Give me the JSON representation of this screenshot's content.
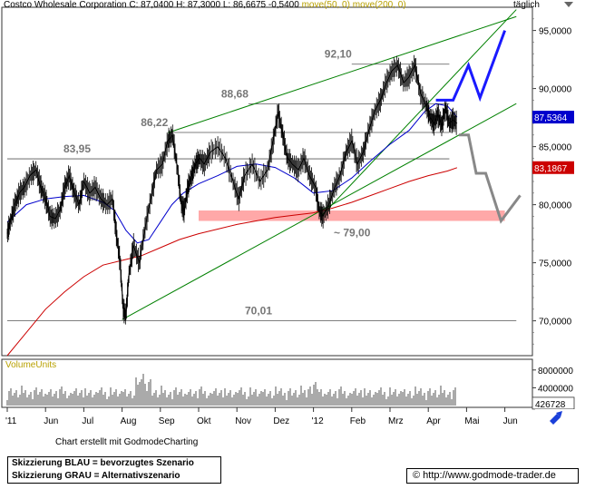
{
  "header": {
    "company": "Costco Wholesale Corporation",
    "close": "C: 87,0400",
    "high": "H: 87,3000",
    "low": "L: 86,6675",
    "change": "-0,5400",
    "ma50": "move(50, 0)",
    "ma200": "move(200, 0)",
    "frequency": "täglich"
  },
  "footer": {
    "credit": "Chart erstellt mit GodmodeCharting",
    "legend_blue": "Skizzierung BLAU = bevorzugtes Szenario",
    "legend_gray": "Skizzierung GRAU = Alternativszenario",
    "url": "http://www.godmode-trader.de",
    "copyright_icon": "copyright-icon"
  },
  "colors": {
    "price": "#000000",
    "ma50": "#0000cc",
    "ma200": "#cc0000",
    "trend": "#008000",
    "support_zone": "#ff9999",
    "blue_scenario": "#1a1aff",
    "gray_scenario": "#888888",
    "level_line": "#555555"
  },
  "chart_data": {
    "type": "line",
    "title": "Costco Wholesale Corporation",
    "y_axis": {
      "min": 67,
      "max": 97,
      "ticks": [
        "95,0000",
        "90,0000",
        "85,0000",
        "80,0000",
        "75,0000",
        "70,0000"
      ],
      "tick_values": [
        95,
        90,
        85,
        80,
        75,
        70
      ]
    },
    "x_ticks": [
      {
        "label": "'11",
        "m": 0
      },
      {
        "label": "Jun",
        "m": 1
      },
      {
        "label": "Jul",
        "m": 2
      },
      {
        "label": "Aug",
        "m": 3
      },
      {
        "label": "Sep",
        "m": 4
      },
      {
        "label": "Okt",
        "m": 5
      },
      {
        "label": "Nov",
        "m": 6
      },
      {
        "label": "Dez",
        "m": 7
      },
      {
        "label": "'12",
        "m": 8
      },
      {
        "label": "Feb",
        "m": 9
      },
      {
        "label": "Mrz",
        "m": 10
      },
      {
        "label": "Apr",
        "m": 11
      },
      {
        "label": "Mai",
        "m": 12
      },
      {
        "label": "Jun",
        "m": 13
      }
    ],
    "price_labels": [
      {
        "label": "87,5364",
        "value": 87.54,
        "color": "#0000cc"
      },
      {
        "label": "83,1867",
        "value": 83.19,
        "color": "#cc0000"
      }
    ],
    "levels": [
      {
        "label": "92,10",
        "value": 92.1,
        "m0": 9.0,
        "m1": 11.55
      },
      {
        "label": "88,68",
        "value": 88.68,
        "m0": 6.3,
        "m1": 11.55
      },
      {
        "label": "86,22",
        "value": 86.22,
        "m0": 4.2,
        "m1": 11.55
      },
      {
        "label": "83,95",
        "value": 83.95,
        "m0": 0,
        "m1": 11.55
      },
      {
        "label": "70,01",
        "value": 70.01,
        "m0": 0,
        "m1": 13.3
      }
    ],
    "support_zone": {
      "label": "~ 79,00",
      "low": 78.6,
      "high": 79.5,
      "m0": 5.0,
      "m1": 13.0
    },
    "trendlines": [
      {
        "name": "upper",
        "from": [
          4.2,
          86.2
        ],
        "to": [
          13.3,
          96.2
        ]
      },
      {
        "name": "lower",
        "from": [
          3.0,
          70.1
        ],
        "to": [
          13.3,
          88.7
        ]
      },
      {
        "name": "inner",
        "from": [
          8.2,
          79.0
        ],
        "to": [
          13.3,
          96.8
        ]
      }
    ],
    "series": [
      {
        "name": "price",
        "x": [
          0,
          0.08,
          0.2,
          0.32,
          0.45,
          0.6,
          0.75,
          0.88,
          1.0,
          1.12,
          1.25,
          1.38,
          1.5,
          1.62,
          1.75,
          1.88,
          2.0,
          2.15,
          2.3,
          2.45,
          2.6,
          2.75,
          2.85,
          2.95,
          3.03,
          3.1,
          3.18,
          3.3,
          3.45,
          3.6,
          3.75,
          3.9,
          4.05,
          4.2,
          4.32,
          4.45,
          4.55,
          4.62,
          4.72,
          4.82,
          4.92,
          5.02,
          5.15,
          5.3,
          5.5,
          5.7,
          5.9,
          6.05,
          6.2,
          6.4,
          6.6,
          6.8,
          6.95,
          7.08,
          7.2,
          7.32,
          7.45,
          7.6,
          7.75,
          7.9,
          8.05,
          8.15,
          8.25,
          8.4,
          8.55,
          8.7,
          8.85,
          9.0,
          9.15,
          9.3,
          9.45,
          9.6,
          9.75,
          9.9,
          10.05,
          10.2,
          10.35,
          10.5,
          10.65,
          10.8,
          10.95,
          11.05,
          11.15,
          11.25,
          11.35,
          11.45,
          11.55,
          11.65,
          11.75
        ],
        "values": [
          77.5,
          78.5,
          80.0,
          81.0,
          81.5,
          82.5,
          83.0,
          81.5,
          80.5,
          79.0,
          78.8,
          79.5,
          81.5,
          82.5,
          81.0,
          80.0,
          82.0,
          81.0,
          81.5,
          80.5,
          80.0,
          80.5,
          77.5,
          75.0,
          71.0,
          70.5,
          74.0,
          76.5,
          75.0,
          78.0,
          80.5,
          83.0,
          83.5,
          85.5,
          86.0,
          83.0,
          80.0,
          79.5,
          81.5,
          82.5,
          83.5,
          84.0,
          83.5,
          84.5,
          85.0,
          84.0,
          82.0,
          80.5,
          82.5,
          83.5,
          82.0,
          83.0,
          85.5,
          88.0,
          86.0,
          84.0,
          83.5,
          83.0,
          84.0,
          82.5,
          81.5,
          79.5,
          79.0,
          80.0,
          81.5,
          82.5,
          84.5,
          85.5,
          83.5,
          84.5,
          86.5,
          88.0,
          89.0,
          90.5,
          91.5,
          92.0,
          90.5,
          91.0,
          92.0,
          89.5,
          88.5,
          87.5,
          87.0,
          87.8,
          86.8,
          88.3,
          87.0,
          87.3,
          87.0
        ]
      },
      {
        "name": "ma50",
        "x": [
          0,
          0.5,
          1.0,
          1.5,
          2.0,
          2.5,
          2.8,
          3.1,
          3.4,
          3.7,
          4.0,
          4.3,
          4.6,
          5.0,
          5.5,
          6.0,
          6.5,
          7.0,
          7.5,
          8.0,
          8.5,
          9.0,
          9.5,
          10.0,
          10.5,
          10.9,
          11.2,
          11.5,
          11.75
        ],
        "values": [
          78.5,
          80.0,
          80.5,
          80.7,
          80.8,
          80.2,
          79.5,
          77.8,
          76.7,
          77.0,
          78.5,
          80.0,
          81.0,
          81.8,
          82.5,
          83.3,
          83.5,
          83.2,
          82.3,
          81.0,
          81.2,
          82.3,
          83.8,
          85.2,
          86.4,
          88.0,
          88.7,
          88.5,
          87.54
        ]
      },
      {
        "name": "ma200",
        "x": [
          0,
          0.5,
          1.0,
          1.5,
          2.0,
          2.5,
          3.0,
          3.5,
          4.0,
          4.5,
          5.0,
          5.5,
          6.0,
          6.5,
          7.0,
          7.5,
          8.0,
          8.5,
          9.0,
          9.5,
          10.0,
          10.5,
          11.0,
          11.5,
          11.75
        ],
        "values": [
          67.0,
          69.0,
          71.0,
          72.5,
          73.8,
          74.8,
          75.2,
          75.6,
          76.3,
          77.0,
          77.5,
          77.9,
          78.3,
          78.6,
          78.9,
          79.1,
          79.3,
          79.7,
          80.2,
          80.8,
          81.4,
          82.0,
          82.5,
          82.9,
          83.19
        ]
      }
    ],
    "volume": {
      "label": "VolumeUnits",
      "ticks": [
        "8000000",
        "4000000"
      ],
      "tick_values": [
        8000000,
        4000000
      ],
      "max": 10000000,
      "last_label": "426728",
      "last_value": 426728
    },
    "scenarios": [
      {
        "name": "Skizzierung BLAU",
        "points": [
          [
            11.2,
            89.0
          ],
          [
            11.65,
            89.0
          ],
          [
            12.05,
            92.0
          ],
          [
            12.35,
            89.2
          ],
          [
            13.0,
            95.0
          ]
        ]
      },
      {
        "name": "Skizzierung GRAU",
        "points": [
          [
            11.8,
            86.0
          ],
          [
            12.05,
            86.0
          ],
          [
            12.25,
            82.7
          ],
          [
            12.5,
            82.7
          ],
          [
            12.9,
            78.6
          ],
          [
            13.4,
            80.8
          ]
        ]
      }
    ]
  }
}
